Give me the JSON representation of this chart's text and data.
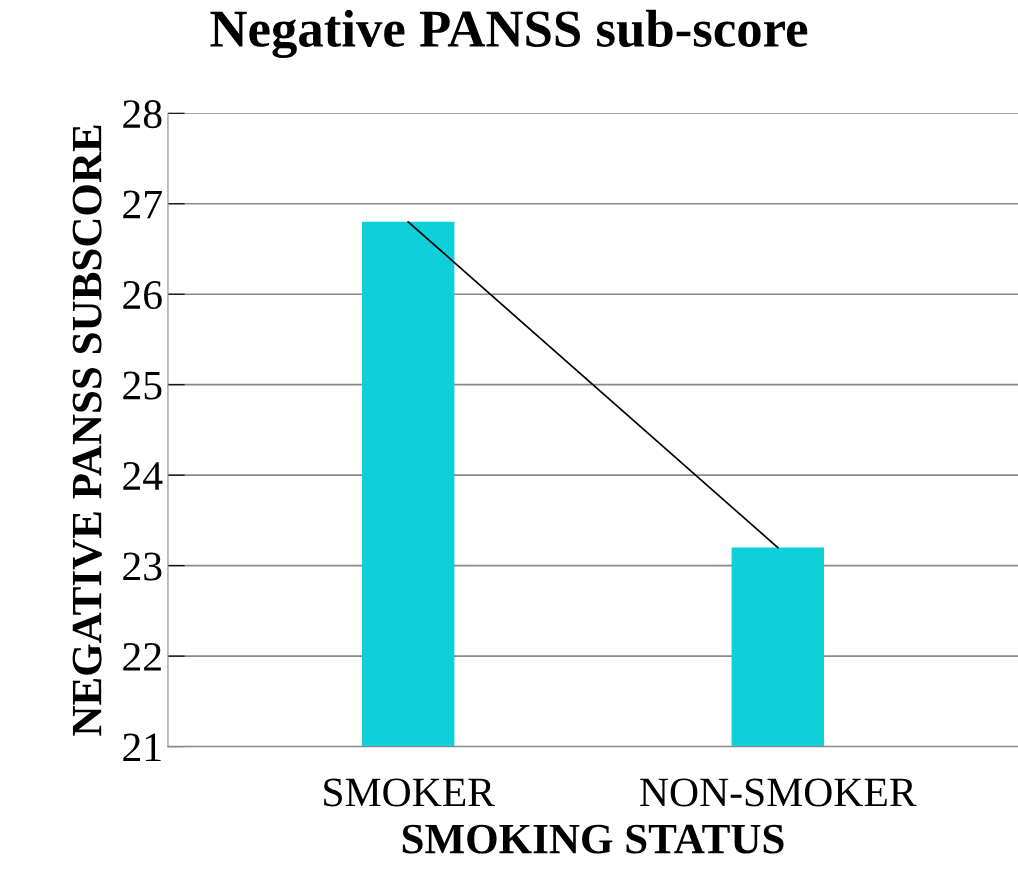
{
  "chart_data": {
    "type": "bar",
    "title": "Negative PANSS sub-score",
    "xlabel": "SMOKING STATUS",
    "ylabel": "NEGATIVE PANSS SUBSCORE",
    "categories": [
      "SMOKER",
      "NON-SMOKER"
    ],
    "series": [
      {
        "color": "#0fd0d8",
        "values": [
          26.8,
          23.2
        ]
      },
      {
        "type": "line",
        "color": "#000000",
        "values": [
          26.8,
          23.2
        ]
      }
    ],
    "ylim": [
      21,
      28
    ],
    "yticks": [
      21,
      22,
      23,
      24,
      25,
      26,
      27,
      28
    ],
    "grid": "y"
  }
}
